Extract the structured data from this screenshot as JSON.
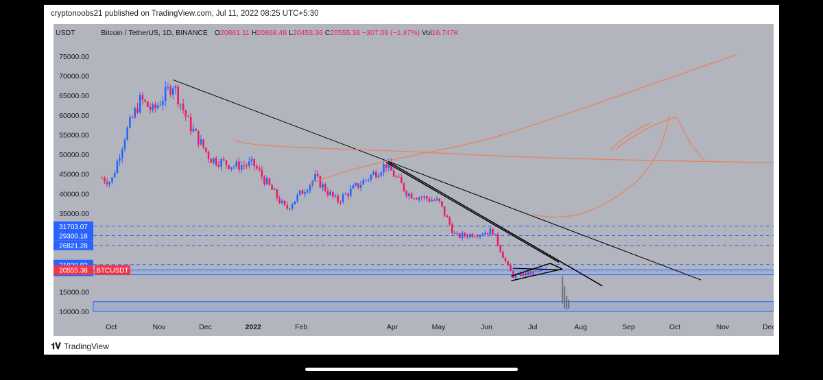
{
  "published": "cryptonoobs21 published on TradingView.com, Jul 11, 2022 08:25 UTC+5:30",
  "footer": {
    "brand": "TradingView"
  },
  "legend": {
    "currency": "USDT",
    "symbol": "Bitcoin / TetherUS, 1D, BINANCE",
    "o_label": "O",
    "o": "20861.11",
    "h_label": "H",
    "h": "20868.48",
    "l_label": "L",
    "l": "20453.36",
    "c_label": "C",
    "c": "20555.38",
    "chg": "−307.09 (−1.47%)",
    "vol_label": "Vol",
    "vol": "16.747K"
  },
  "price_tag": {
    "value": "20555.38",
    "symbol": "BTCUSDT"
  },
  "colors": {
    "background": "#b2b5be",
    "up": "#2962ff",
    "down": "#e91e63",
    "level": "#2962ff",
    "drawing": "#e8825c",
    "trendline": "#000000",
    "price_tag": "#f23645"
  },
  "chart_data": {
    "type": "candlestick",
    "title": "Bitcoin / TetherUS, 1D, BINANCE",
    "x_ticks": [
      "Oct",
      "Nov",
      "Dec",
      "2022",
      "Feb",
      "Apr",
      "May",
      "Jun",
      "Jul",
      "Aug",
      "Sep",
      "Oct",
      "Nov",
      "Dec"
    ],
    "y_ticks": [
      75000,
      70000,
      65000,
      60000,
      55000,
      50000,
      45000,
      40000,
      35000,
      15000,
      10000
    ],
    "ylim": [
      7000,
      79000
    ],
    "grid": false,
    "price_path": [
      {
        "date": "2021-09-25",
        "close": 44000
      },
      {
        "date": "2021-10-01",
        "close": 43000
      },
      {
        "date": "2021-10-10",
        "close": 55000
      },
      {
        "date": "2021-10-20",
        "close": 64000
      },
      {
        "date": "2021-10-28",
        "close": 61000
      },
      {
        "date": "2021-11-10",
        "close": 68000
      },
      {
        "date": "2021-11-20",
        "close": 58000
      },
      {
        "date": "2021-12-04",
        "close": 49000
      },
      {
        "date": "2021-12-20",
        "close": 47000
      },
      {
        "date": "2022-01-01",
        "close": 47500
      },
      {
        "date": "2022-01-22",
        "close": 36000
      },
      {
        "date": "2022-02-10",
        "close": 44000
      },
      {
        "date": "2022-02-24",
        "close": 38000
      },
      {
        "date": "2022-03-28",
        "close": 47500
      },
      {
        "date": "2022-04-11",
        "close": 40000
      },
      {
        "date": "2022-05-01",
        "close": 38000
      },
      {
        "date": "2022-05-12",
        "close": 29000
      },
      {
        "date": "2022-06-05",
        "close": 30500
      },
      {
        "date": "2022-06-14",
        "close": 22000
      },
      {
        "date": "2022-06-18",
        "close": 19000
      },
      {
        "date": "2022-07-05",
        "close": 20200
      },
      {
        "date": "2022-07-11",
        "close": 20555
      }
    ],
    "levels": [
      {
        "price": 31703.07,
        "label": "31703.07"
      },
      {
        "price": 29300.18,
        "label": "29300.18"
      },
      {
        "price": 26821.28,
        "label": "26821.28"
      },
      {
        "price": 21920.92,
        "label": "21920.92"
      },
      {
        "price": 20206.4,
        "label": "20206.40"
      }
    ],
    "last_price": 20555.38
  }
}
